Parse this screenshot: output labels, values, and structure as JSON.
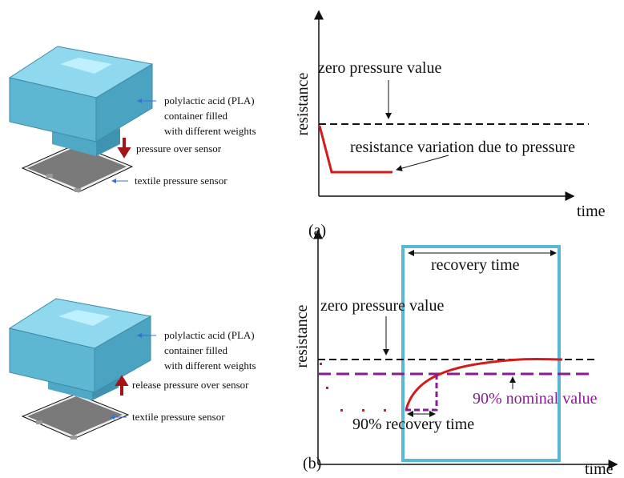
{
  "panel_a": {
    "caption": "(a)",
    "container_label": [
      "polylactic acid (PLA)",
      "container filled",
      "with different weights"
    ],
    "action_label": "pressure over sensor",
    "sensor_label": "textile pressure sensor",
    "y_axis_label": "resistance",
    "x_axis_label": "time",
    "zero_label": "zero pressure value",
    "variation_label": "resistance variation due to pressure"
  },
  "panel_b": {
    "caption": "(b)",
    "container_label": [
      "polylactic acid (PLA)",
      "container filled",
      "with different weights"
    ],
    "action_label": "release pressure over sensor",
    "sensor_label": "textile pressure sensor",
    "y_axis_label": "resistance",
    "x_axis_label": "time",
    "zero_label": "zero pressure value",
    "recovery_label": "recovery time",
    "nominal_label": "90% nominal value",
    "recovery90_label": "90% recovery time"
  }
}
